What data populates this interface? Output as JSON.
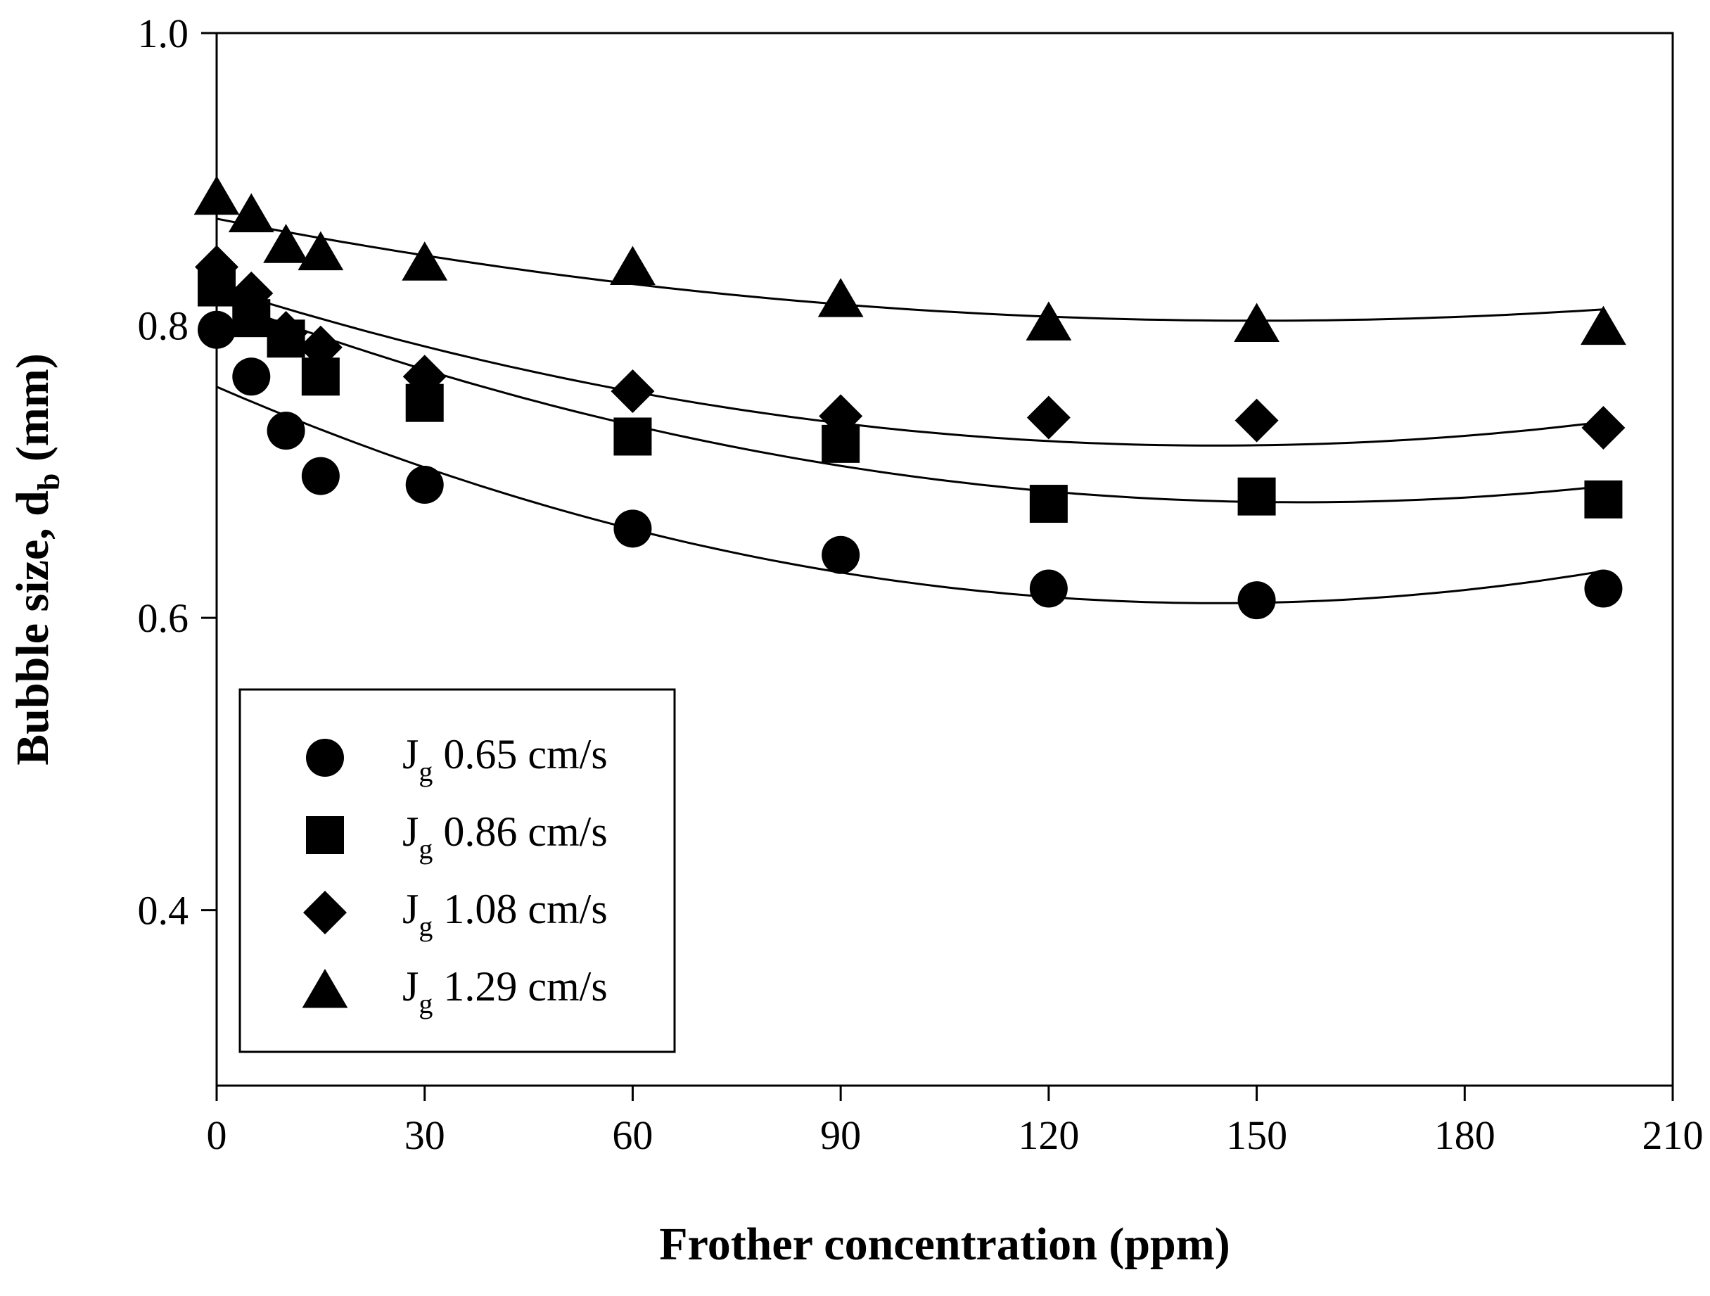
{
  "chart_data": {
    "type": "scatter",
    "title": "",
    "xlabel": "Frother concentration (ppm)",
    "ylabel_main": "Bubble size, d",
    "ylabel_sub": "b",
    "ylabel_unit": " (mm)",
    "xlim": [
      0,
      210
    ],
    "ylim": [
      0.28,
      1.0
    ],
    "xticks": [
      0,
      30,
      60,
      90,
      120,
      150,
      180,
      210
    ],
    "xtick_labels": [
      "0",
      "30",
      "60",
      "90",
      "120",
      "150",
      "180",
      "210"
    ],
    "yticks": [
      0.4,
      0.6,
      0.8,
      1.0
    ],
    "ytick_labels": [
      "0.4",
      "0.6",
      "0.8",
      "1.0"
    ],
    "grid": false,
    "legend_position": "bottom-left",
    "series": [
      {
        "name": "J",
        "name_sub": "g",
        "name_value": " 0.65 cm/s",
        "marker": "circle",
        "x": [
          0,
          5,
          10,
          15,
          30,
          60,
          90,
          120,
          150,
          200
        ],
        "y": [
          0.797,
          0.765,
          0.728,
          0.697,
          0.691,
          0.661,
          0.643,
          0.62,
          0.612,
          0.62
        ],
        "fit": [
          0.758,
          -0.00205,
          7.1e-06
        ]
      },
      {
        "name": "J",
        "name_sub": "g",
        "name_value": " 0.86 cm/s",
        "marker": "square",
        "x": [
          0,
          5,
          10,
          15,
          30,
          60,
          90,
          120,
          150,
          200
        ],
        "y": [
          0.826,
          0.805,
          0.791,
          0.765,
          0.747,
          0.724,
          0.719,
          0.678,
          0.683,
          0.681
        ],
        "fit": [
          0.818,
          -0.00178,
          5.7e-06
        ]
      },
      {
        "name": "J",
        "name_sub": "g",
        "name_value": " 1.08 cm/s",
        "marker": "diamond",
        "x": [
          0,
          5,
          10,
          15,
          30,
          60,
          90,
          120,
          150,
          200
        ],
        "y": [
          0.84,
          0.822,
          0.795,
          0.785,
          0.765,
          0.755,
          0.738,
          0.737,
          0.735,
          0.73
        ],
        "fit": [
          0.826,
          -0.0015,
          5.2e-06
        ]
      },
      {
        "name": "J",
        "name_sub": "g",
        "name_value": " 1.29 cm/s",
        "marker": "triangle",
        "x": [
          0,
          5,
          10,
          15,
          30,
          60,
          90,
          120,
          150,
          200
        ],
        "y": [
          0.888,
          0.876,
          0.855,
          0.85,
          0.843,
          0.84,
          0.818,
          0.802,
          0.801,
          0.799
        ],
        "fit": [
          0.873,
          -0.00093,
          3.1e-06
        ]
      }
    ]
  }
}
